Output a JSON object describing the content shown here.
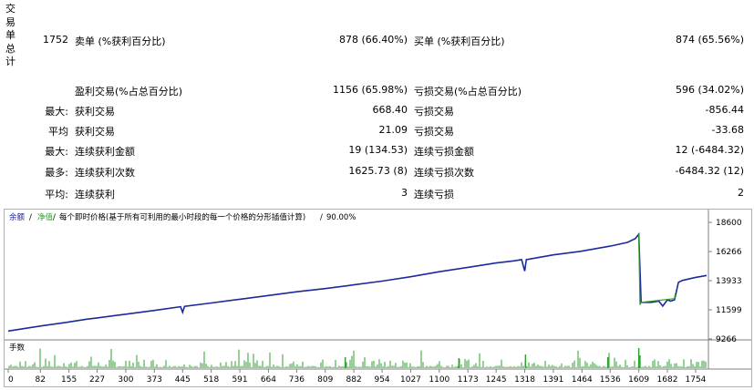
{
  "sidebar": {
    "label_chars": [
      "交",
      "易",
      "单",
      "总",
      "计"
    ]
  },
  "summary": {
    "total_trades": "1752",
    "sell_label": "卖单 (%获利百分比)",
    "sell_value": "878 (66.40%)",
    "buy_label": "买单 (%获利百分比)",
    "buy_value": "874 (65.56%)",
    "profit_trades_label": "盈利交易(%占总百分比)",
    "profit_trades_value": "1156 (65.98%)",
    "loss_trades_label": "亏损交易(%占总百分比)",
    "loss_trades_value": "596 (34.02%)"
  },
  "stats_rows": [
    {
      "prefix": "最大:",
      "left_label": "获利交易",
      "left_value": "668.40",
      "right_label": "亏损交易",
      "right_value": "-856.44"
    },
    {
      "prefix": "平均",
      "left_label": "获利交易",
      "left_value": "21.09",
      "right_label": "亏损交易",
      "right_value": "-33.68"
    },
    {
      "prefix": "最大:",
      "left_label": "连续获利金额",
      "left_value": "19 (134.53)",
      "right_label": "连续亏损金额",
      "right_value": "12 (-6484.32)"
    },
    {
      "prefix": "最多:",
      "left_label": "连续获利次数",
      "left_value": "1625.73 (8)",
      "right_label": "连续亏损次数",
      "right_value": "-6484.32 (12)"
    },
    {
      "prefix": "平均:",
      "left_label": "连续获利",
      "left_value": "3",
      "right_label": "连续亏损",
      "right_value": "2"
    }
  ],
  "chart_header": {
    "balance_label": "余额",
    "separator1": "/",
    "equity_label": "净值",
    "separator2": "/",
    "model_text": "每个即时价格(基于所有可利用的最小时段的每一个价格的分形插值计算)",
    "separator3": "/",
    "quality": "90.00%"
  },
  "volume_label": "手数",
  "colors": {
    "balance_line": "#1c2a9c",
    "equity_line": "#2ca02c",
    "volume_bars": "#2ca02c"
  },
  "chart_data": {
    "type": "line",
    "title": "",
    "xlabel": "",
    "ylabel": "",
    "x_ticks": [
      0,
      82,
      155,
      227,
      300,
      373,
      445,
      518,
      591,
      664,
      736,
      809,
      882,
      954,
      1027,
      1100,
      1173,
      1245,
      1318,
      1391,
      1464,
      1536,
      1609,
      1682,
      1754
    ],
    "y_ticks": [
      18600,
      16266,
      13933,
      11599,
      9266
    ],
    "xlim": [
      0,
      1782
    ],
    "ylim": [
      9266,
      18900
    ],
    "grid": false,
    "series": [
      {
        "name": "余额",
        "x": [
          0,
          82,
          150,
          200,
          227,
          300,
          373,
          440,
          445,
          450,
          518,
          591,
          664,
          736,
          809,
          882,
          954,
          1027,
          1100,
          1173,
          1245,
          1290,
          1310,
          1318,
          1322,
          1391,
          1464,
          1536,
          1580,
          1600,
          1605,
          1609,
          1615,
          1640,
          1660,
          1670,
          1682,
          1690,
          1700,
          1710,
          1720,
          1740,
          1754,
          1782
        ],
        "values": [
          9900,
          10300,
          10600,
          10850,
          10950,
          11250,
          11550,
          11850,
          11400,
          11880,
          12150,
          12450,
          12750,
          13050,
          13300,
          13600,
          13900,
          14250,
          14650,
          15000,
          15350,
          15520,
          15620,
          14700,
          15620,
          16000,
          16300,
          16700,
          17000,
          17300,
          17500,
          17650,
          12200,
          12200,
          12300,
          11900,
          12400,
          12300,
          12400,
          13800,
          13950,
          14100,
          14200,
          14350
        ]
      },
      {
        "name": "净值",
        "x": [
          1609,
          1612,
          1615,
          1700,
          1702
        ],
        "values": [
          17650,
          12000,
          12200,
          12500,
          12900
        ]
      }
    ],
    "volume_series": {
      "name": "手数",
      "ylim": [
        0,
        1
      ]
    }
  }
}
